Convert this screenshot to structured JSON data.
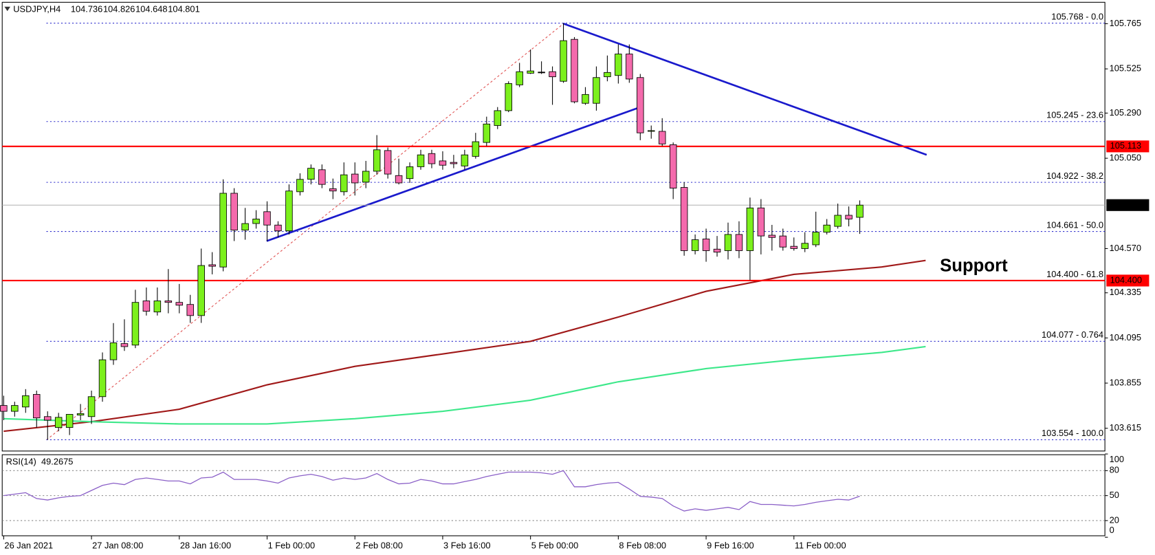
{
  "chart_data": {
    "type": "candlestick",
    "title": "USDJPY,H4",
    "categories": [
      "26 Jan 2021",
      null,
      null,
      null,
      null,
      null,
      null,
      null,
      "27 Jan 08:00",
      null,
      null,
      null,
      null,
      null,
      null,
      null,
      "28 Jan 16:00",
      null,
      null,
      null,
      null,
      null,
      null,
      null,
      "1 Feb 00:00",
      null,
      null,
      null,
      null,
      null,
      null,
      null,
      "2 Feb 08:00",
      null,
      null,
      null,
      null,
      null,
      null,
      null,
      "3 Feb 16:00",
      null,
      null,
      null,
      null,
      null,
      null,
      null,
      "5 Feb 00:00",
      null,
      null,
      null,
      null,
      null,
      null,
      null,
      "8 Feb 08:00",
      null,
      null,
      null,
      null,
      null,
      null,
      null,
      "9 Feb 16:00",
      null,
      null,
      null,
      null,
      null,
      null,
      null,
      "11 Feb 00:00",
      null,
      null,
      null,
      null,
      null,
      null
    ],
    "open": [
      103.736,
      103.705,
      103.728,
      103.795,
      103.677,
      103.619,
      103.619,
      103.685,
      103.677,
      103.783,
      103.979,
      104.065,
      104.057,
      104.292,
      104.233,
      104.292,
      104.284,
      104.273,
      104.214,
      104.484,
      104.472,
      104.864,
      104.668,
      104.703,
      104.766,
      104.695,
      104.664,
      104.872,
      104.938,
      104.989,
      104.888,
      104.872,
      104.966,
      104.923,
      104.981,
      105.091,
      104.958,
      104.942,
      105.005,
      105.075,
      105.036,
      105.028,
      105.009,
      105.06,
      105.134,
      105.224,
      105.303,
      105.44,
      105.502,
      105.506,
      105.51,
      105.459,
      105.682,
      105.342,
      105.342,
      105.483,
      105.49,
      105.604,
      105.479,
      105.193,
      105.193,
      105.122,
      104.895,
      104.559,
      104.621,
      104.567,
      104.559,
      104.645,
      104.559,
      104.786,
      104.641,
      104.637,
      104.582,
      104.57,
      104.59,
      104.657,
      104.688,
      104.747,
      104.736
    ],
    "high": [
      103.788,
      103.756,
      103.823,
      103.815,
      103.705,
      103.697,
      103.689,
      103.744,
      103.815,
      104.018,
      104.174,
      104.194,
      104.351,
      104.363,
      104.363,
      104.461,
      104.382,
      104.324,
      104.57,
      104.551,
      104.938,
      104.891,
      104.786,
      104.774,
      104.821,
      104.715,
      104.911,
      104.97,
      105.017,
      105.017,
      104.942,
      105.028,
      105.028,
      105.036,
      105.173,
      105.107,
      105.048,
      105.028,
      105.095,
      105.095,
      105.087,
      105.068,
      105.095,
      105.185,
      105.271,
      105.322,
      105.459,
      105.557,
      105.628,
      105.565,
      105.538,
      105.768,
      105.694,
      105.428,
      105.538,
      105.596,
      105.655,
      105.655,
      105.498,
      105.224,
      105.263,
      105.134,
      104.923,
      104.645,
      104.676,
      104.637,
      104.708,
      104.715,
      104.841,
      104.833,
      104.696,
      104.676,
      104.629,
      104.657,
      104.766,
      104.727,
      104.809,
      104.794,
      104.826
    ],
    "low": [
      103.658,
      103.677,
      103.697,
      103.619,
      103.554,
      103.599,
      103.579,
      103.658,
      103.638,
      103.756,
      103.952,
      104.026,
      104.041,
      104.214,
      104.214,
      104.226,
      104.226,
      104.175,
      104.175,
      104.433,
      104.449,
      104.61,
      104.617,
      104.676,
      104.61,
      104.629,
      104.645,
      104.852,
      104.911,
      104.891,
      104.833,
      104.852,
      104.852,
      104.891,
      104.962,
      104.942,
      104.911,
      104.919,
      104.989,
      104.997,
      104.989,
      104.997,
      104.989,
      105.048,
      105.115,
      105.205,
      105.295,
      105.428,
      105.498,
      105.498,
      105.334,
      105.451,
      105.342,
      105.334,
      105.303,
      105.459,
      105.447,
      105.451,
      105.146,
      105.154,
      105.115,
      104.833,
      104.532,
      104.539,
      104.5,
      104.527,
      104.512,
      104.519,
      104.402,
      104.539,
      104.559,
      104.559,
      104.559,
      104.551,
      104.578,
      104.645,
      104.676,
      104.688,
      104.648
    ],
    "close": [
      103.705,
      103.736,
      103.788,
      103.67,
      103.658,
      103.673,
      103.689,
      103.693,
      103.783,
      103.979,
      104.069,
      104.049,
      104.284,
      104.237,
      104.292,
      104.284,
      104.269,
      104.214,
      104.48,
      104.476,
      104.864,
      104.668,
      104.703,
      104.727,
      104.695,
      104.664,
      104.876,
      104.938,
      104.997,
      104.911,
      104.876,
      104.962,
      104.919,
      104.981,
      105.095,
      104.966,
      104.919,
      105.005,
      105.068,
      105.021,
      105.013,
      105.021,
      105.068,
      105.138,
      105.232,
      105.303,
      105.447,
      105.51,
      105.514,
      105.506,
      105.483,
      105.675,
      105.35,
      105.389,
      105.479,
      105.506,
      105.604,
      105.471,
      105.185,
      105.197,
      105.126,
      104.891,
      104.559,
      104.617,
      104.559,
      104.551,
      104.645,
      104.559,
      104.786,
      104.637,
      104.629,
      104.578,
      104.57,
      104.598,
      104.657,
      104.695,
      104.747,
      104.727,
      104.801
    ],
    "up_color": "#7cf01c",
    "down_color": "#f46aac",
    "ylim": [
      103.494,
      105.875
    ],
    "yticks": [
      105.765,
      105.525,
      {
        "value": 105.29,
        "label": "105.290"
      },
      {
        "value": 105.05,
        "label": "105.050"
      },
      {
        "value": 104.57,
        "label": "104.570"
      },
      104.335,
      104.095,
      103.855,
      103.615
    ],
    "moving_averages": [
      {
        "color": "#a01818",
        "x": [
          0,
          8,
          16,
          24,
          32,
          40,
          48,
          56,
          64,
          72,
          80,
          84
        ],
        "values": [
          103.599,
          103.65,
          103.716,
          103.846,
          103.944,
          104.01,
          104.077,
          104.206,
          104.343,
          104.433,
          104.472,
          104.507
        ]
      },
      {
        "color": "#3de88a",
        "x": [
          0,
          8,
          16,
          24,
          32,
          40,
          48,
          56,
          64,
          72,
          80,
          84
        ],
        "values": [
          103.666,
          103.65,
          103.638,
          103.638,
          103.666,
          103.705,
          103.764,
          103.862,
          103.932,
          103.979,
          104.018,
          104.049
        ]
      }
    ],
    "fibonacci": [
      {
        "value": 105.768,
        "label": "105.768 - 0.0"
      },
      {
        "value": 105.245,
        "label": "105.245 - 23.6"
      },
      {
        "value": 104.922,
        "label": "104.922 - 38.2"
      },
      {
        "value": 104.661,
        "label": "104.661 - 50.0"
      },
      {
        "value": 104.4,
        "label": "104.400 - 61.8"
      },
      {
        "value": 104.077,
        "label": "104.077 - 0.764"
      },
      {
        "value": 103.554,
        "label": "103.554 - 100.0"
      }
    ],
    "fib_color": "#2a2acc",
    "levels": [
      {
        "value": 105.113,
        "label": "105.113"
      },
      {
        "value": 104.4,
        "label": "104.400"
      }
    ],
    "level_color": "#ff0000",
    "annotations": [
      {
        "text": "Support",
        "color": "#22aa44"
      }
    ],
    "rsi": {
      "title": "RSI(14)",
      "color": "#8a5fc7",
      "ylim": [
        0,
        100
      ],
      "yticks": [
        0,
        20,
        50,
        80,
        100
      ],
      "values": [
        50.0,
        51.8,
        53.5,
        46.5,
        44.7,
        47.3,
        49.1,
        50.0,
        56.2,
        62.3,
        65.0,
        63.2,
        69.4,
        71.2,
        69.4,
        67.6,
        67.6,
        64.1,
        71.2,
        72.1,
        78.2,
        69.4,
        69.4,
        69.4,
        67.6,
        65.0,
        71.2,
        73.8,
        75.6,
        72.9,
        68.5,
        71.2,
        69.4,
        71.2,
        76.5,
        69.4,
        64.1,
        65.0,
        69.4,
        67.6,
        64.1,
        64.1,
        66.8,
        69.4,
        72.9,
        75.6,
        78.2,
        78.2,
        78.2,
        77.4,
        75.6,
        80.0,
        60.6,
        60.6,
        63.2,
        65.0,
        65.9,
        57.9,
        49.1,
        48.2,
        46.5,
        37.6,
        31.5,
        34.1,
        32.3,
        34.1,
        35.9,
        33.2,
        42.9,
        39.4,
        39.4,
        38.5,
        37.6,
        39.4,
        42.0,
        43.8,
        45.6,
        44.7,
        49.2675
      ]
    }
  }
}
